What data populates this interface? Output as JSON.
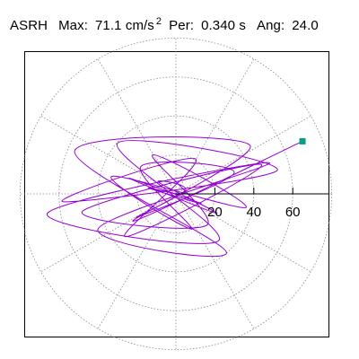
{
  "header": {
    "station": "ASRH",
    "max_label": "Max:",
    "max_value": "71.1 cm/s",
    "max_exp": "2",
    "per_label": "Per:",
    "per_value": "0.340 s",
    "ang_label": "Ang:",
    "ang_value": "24.0"
  },
  "chart_data": {
    "type": "line",
    "title": "ASRH   Max:  71.1 cm/s² Per:  0.340 s  Ang:  24.0",
    "coordinate_system": "polar-orbit",
    "radial_ticks": [
      20,
      40,
      60
    ],
    "radial_range": [
      0,
      80
    ],
    "angular_grid_step_deg": 30,
    "grid": true,
    "series": [
      {
        "color": "#9400D3",
        "x": [
          0,
          -14,
          13,
          -24,
          21,
          -9,
          5,
          -20,
          30,
          -18,
          8,
          -33,
          36,
          -12,
          16,
          -48,
          44,
          -26,
          10,
          -58,
          52,
          -30,
          22,
          -66,
          48,
          -40,
          26,
          -52,
          38,
          -22,
          65
        ],
        "y": [
          0,
          3,
          -5,
          8,
          -10,
          6,
          2,
          -12,
          11,
          14,
          -18,
          9,
          -7,
          20,
          -16,
          -9,
          15,
          -22,
          18,
          -4,
          12,
          26,
          -24,
          -10,
          16,
          -18,
          -30,
          22,
          25,
          -14,
          27
        ]
      }
    ],
    "end_marker": {
      "x": 65,
      "y": 27,
      "color": "#00A080",
      "shape": "square"
    }
  }
}
